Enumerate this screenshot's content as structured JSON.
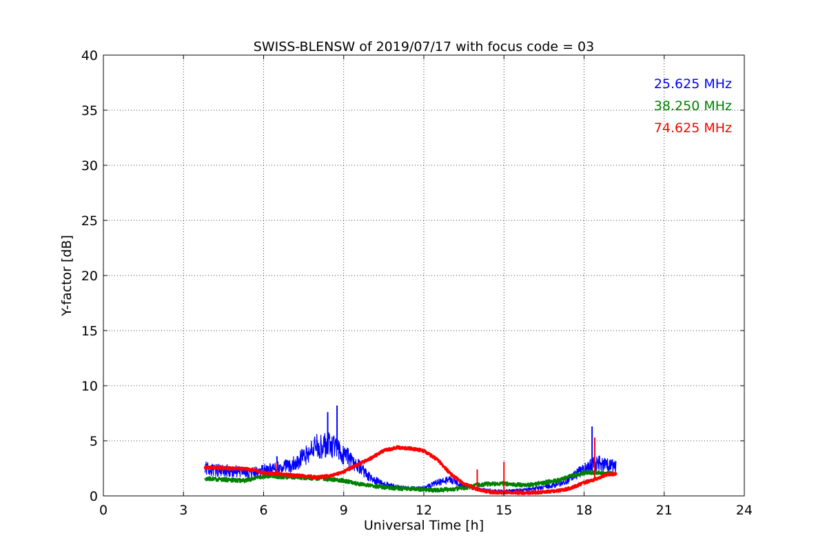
{
  "chart_data": {
    "type": "line",
    "title": "SWISS-BLENSW of 2019/07/17 with focus code = 03",
    "xlabel": "Universal Time [h]",
    "ylabel": "Y-factor [dB]",
    "xlim": [
      0,
      24
    ],
    "ylim": [
      0,
      40
    ],
    "x_ticks": [
      0,
      3,
      6,
      9,
      12,
      15,
      18,
      21,
      24
    ],
    "y_ticks": [
      0,
      5,
      10,
      15,
      20,
      25,
      30,
      35,
      40
    ],
    "grid": true,
    "legend_position": "top-right",
    "series": [
      {
        "name": "25.625 MHz",
        "color": "#0000ff",
        "x": [
          3.8,
          4.5,
          5.0,
          5.5,
          6.0,
          6.5,
          7.0,
          7.5,
          8.0,
          8.5,
          9.0,
          9.5,
          10.0,
          10.5,
          11.0,
          11.5,
          12.0,
          12.5,
          13.0,
          13.5,
          14.0,
          14.5,
          15.0,
          15.5,
          16.0,
          16.5,
          17.0,
          17.5,
          18.0,
          18.5,
          19.2
        ],
        "y": [
          2.5,
          2.3,
          2.2,
          2.0,
          2.3,
          2.5,
          2.8,
          3.5,
          4.5,
          4.6,
          3.8,
          2.8,
          1.6,
          1.1,
          0.8,
          0.7,
          0.7,
          1.2,
          1.5,
          0.9,
          0.6,
          0.5,
          0.4,
          0.5,
          0.6,
          0.8,
          1.0,
          1.6,
          2.4,
          3.0,
          2.6
        ]
      },
      {
        "name": "38.250 MHz",
        "color": "#008000",
        "x": [
          3.8,
          4.5,
          5.0,
          5.3,
          6.0,
          7.0,
          8.0,
          9.0,
          9.5,
          10.0,
          10.5,
          11.0,
          12.0,
          12.5,
          13.0,
          13.5,
          14.0,
          14.5,
          15.0,
          15.5,
          16.0,
          16.5,
          17.0,
          17.5,
          18.0,
          18.5,
          19.2
        ],
        "y": [
          1.6,
          1.5,
          1.4,
          1.4,
          1.8,
          1.7,
          1.6,
          1.4,
          1.1,
          0.9,
          0.8,
          0.7,
          0.6,
          0.5,
          0.6,
          0.7,
          1.0,
          1.1,
          1.1,
          1.0,
          1.0,
          1.2,
          1.4,
          1.8,
          2.1,
          2.1,
          2.0
        ]
      },
      {
        "name": "74.625 MHz",
        "color": "#ff0000",
        "x": [
          3.8,
          4.5,
          5.0,
          5.5,
          6.0,
          7.0,
          8.0,
          8.5,
          9.0,
          9.5,
          10.0,
          10.5,
          11.0,
          11.5,
          12.0,
          12.5,
          13.0,
          13.5,
          14.0,
          14.5,
          15.0,
          15.5,
          16.0,
          16.5,
          17.0,
          17.5,
          18.0,
          18.4,
          18.8,
          19.2
        ],
        "y": [
          2.6,
          2.5,
          2.5,
          2.4,
          2.1,
          1.9,
          1.7,
          1.8,
          2.2,
          2.8,
          3.4,
          4.1,
          4.4,
          4.3,
          4.1,
          3.3,
          2.0,
          1.1,
          0.6,
          0.35,
          0.3,
          0.3,
          0.3,
          0.35,
          0.45,
          0.7,
          1.2,
          1.5,
          1.9,
          2.0
        ]
      }
    ],
    "spikes": [
      {
        "series": 0,
        "x": 8.75,
        "y": 8.2
      },
      {
        "series": 0,
        "x": 8.4,
        "y": 7.6
      },
      {
        "series": 0,
        "x": 18.3,
        "y": 6.3
      },
      {
        "series": 0,
        "x": 6.5,
        "y": 3.6
      },
      {
        "series": 2,
        "x": 15.0,
        "y": 3.1
      },
      {
        "series": 2,
        "x": 18.4,
        "y": 5.3
      },
      {
        "series": 2,
        "x": 14.0,
        "y": 2.4
      },
      {
        "series": 2,
        "x": 6.5,
        "y": 3.0
      }
    ]
  }
}
